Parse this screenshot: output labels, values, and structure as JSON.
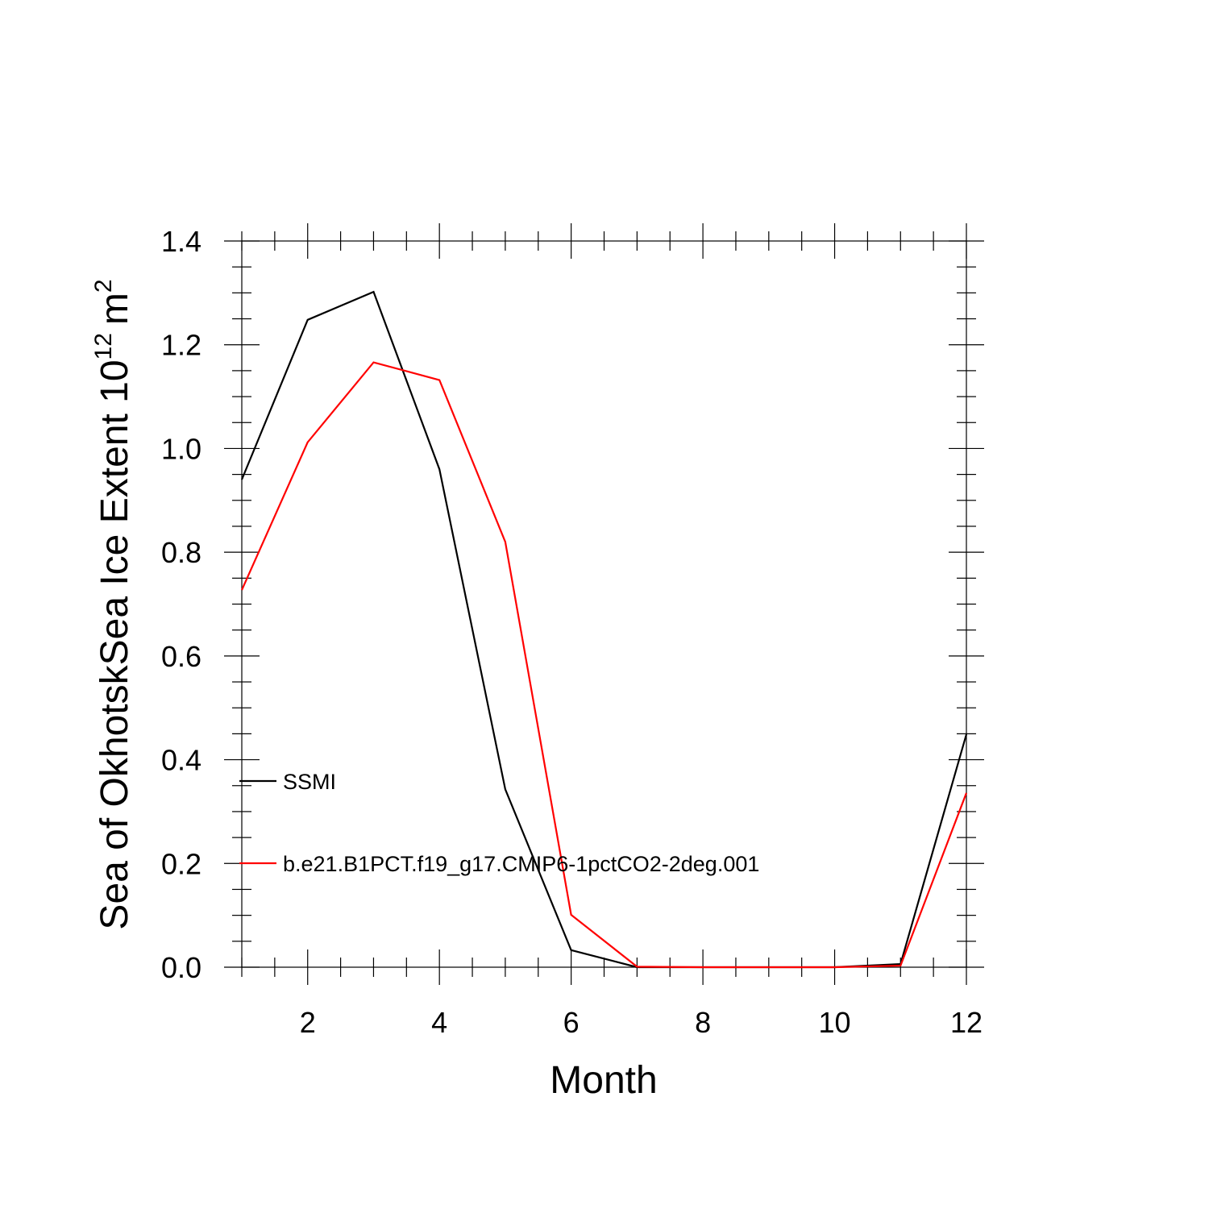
{
  "chart_data": {
    "type": "line",
    "title": "",
    "xlabel": "Month",
    "ylabel": "Sea of OkhotskSea Ice Extent 10",
    "ylabel_superscript": "12",
    "ylabel_unit": "m",
    "ylabel_unit_superscript": "2",
    "xlim": [
      1,
      12
    ],
    "ylim": [
      0,
      1.4
    ],
    "xticks": [
      2,
      4,
      6,
      8,
      10,
      12
    ],
    "xtick_labels": [
      "2",
      "4",
      "6",
      "8",
      "10",
      "12"
    ],
    "yticks": [
      0,
      0.2,
      0.4,
      0.6,
      0.8,
      1.0,
      1.2,
      1.4
    ],
    "ytick_labels": [
      "0.0",
      "0.2",
      "0.4",
      "0.6",
      "0.8",
      "1.0",
      "1.2",
      "1.4"
    ],
    "grid": false,
    "legend_position": "left",
    "x": [
      1,
      2,
      3,
      4,
      5,
      6,
      7,
      8,
      9,
      10,
      11,
      12
    ],
    "series": [
      {
        "name": "SSMI",
        "color": "#000000",
        "values": [
          0.94,
          1.248,
          1.302,
          0.96,
          0.343,
          0.033,
          0.0,
          0.0,
          0.0,
          0.0,
          0.006,
          0.449
        ]
      },
      {
        "name": "b.e21.B1PCT.f19_g17.CMIP6-1pctCO2-2deg.001",
        "color": "#ff0000",
        "values": [
          0.727,
          1.012,
          1.166,
          1.132,
          0.82,
          0.101,
          0.001,
          0.0,
          0.0,
          0.0,
          0.003,
          0.336
        ]
      }
    ]
  }
}
